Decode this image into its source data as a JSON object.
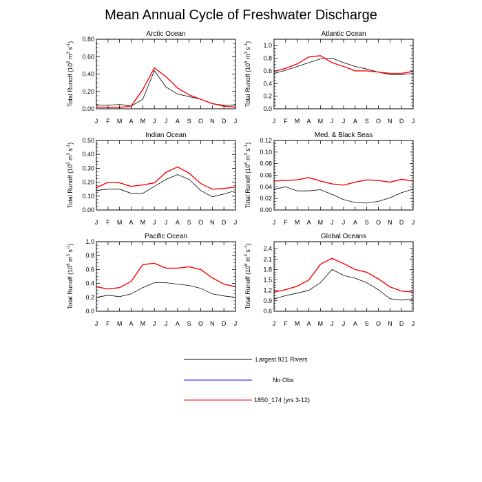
{
  "title": "Mean Annual Cycle of Freshwater Discharge",
  "months": [
    "J",
    "F",
    "M",
    "A",
    "M",
    "J",
    "J",
    "A",
    "S",
    "O",
    "N",
    "D",
    "J"
  ],
  "legend": [
    {
      "label": "Largest 921 Rivers",
      "color": "#000000"
    },
    {
      "label": "No Obs",
      "color": "#0000ff"
    },
    {
      "label": "1850_174 (yrs 3-12)",
      "color": "#ff0000"
    }
  ],
  "chart_data": [
    {
      "type": "line",
      "title": "Arctic Ocean",
      "ylabel": "Total Runoff (10^6 m^3 s^-1)",
      "ylim": [
        0,
        0.8
      ],
      "yticks": [
        0,
        0.2,
        0.4,
        0.6,
        0.8
      ],
      "ytick_labels": [
        "0.00",
        "0.20",
        "0.40",
        "0.60",
        "0.80"
      ],
      "x": [
        1,
        2,
        3,
        4,
        5,
        6,
        7,
        8,
        9,
        10,
        11,
        12,
        13
      ],
      "series": [
        {
          "name": "Largest 921 Rivers",
          "color": "#000000",
          "values": [
            0.04,
            0.04,
            0.05,
            0.03,
            0.11,
            0.44,
            0.25,
            0.17,
            0.14,
            0.11,
            0.06,
            0.04,
            0.04
          ]
        },
        {
          "name": "1850_174 (yrs 3-12)",
          "color": "#ff0000",
          "values": [
            0.02,
            0.015,
            0.015,
            0.03,
            0.22,
            0.47,
            0.37,
            0.24,
            0.16,
            0.11,
            0.06,
            0.03,
            0.02
          ]
        }
      ]
    },
    {
      "type": "line",
      "title": "Atlantic Ocean",
      "ylabel": "Total Runoff (10^6 m^3 s^-1)",
      "ylim": [
        0,
        1.1
      ],
      "yticks": [
        0,
        0.2,
        0.4,
        0.6,
        0.8,
        1.0
      ],
      "ytick_labels": [
        "0.0",
        "0.2",
        "0.4",
        "0.6",
        "0.8",
        "1.0"
      ],
      "x": [
        1,
        2,
        3,
        4,
        5,
        6,
        7,
        8,
        9,
        10,
        11,
        12,
        13
      ],
      "series": [
        {
          "name": "Largest 921 Rivers",
          "color": "#000000",
          "values": [
            0.56,
            0.61,
            0.67,
            0.73,
            0.79,
            0.8,
            0.73,
            0.67,
            0.63,
            0.58,
            0.54,
            0.54,
            0.56
          ]
        },
        {
          "name": "1850_174 (yrs 3-12)",
          "color": "#ff0000",
          "values": [
            0.59,
            0.64,
            0.71,
            0.82,
            0.84,
            0.73,
            0.67,
            0.6,
            0.6,
            0.58,
            0.56,
            0.56,
            0.59
          ]
        }
      ]
    },
    {
      "type": "line",
      "title": "Indian Ocean",
      "ylabel": "Total Runoff (10^6 m^3 s^-1)",
      "ylim": [
        0,
        0.5
      ],
      "yticks": [
        0,
        0.1,
        0.2,
        0.3,
        0.4,
        0.5
      ],
      "ytick_labels": [
        "0.00",
        "0.10",
        "0.20",
        "0.30",
        "0.40",
        "0.50"
      ],
      "x": [
        1,
        2,
        3,
        4,
        5,
        6,
        7,
        8,
        9,
        10,
        11,
        12,
        13
      ],
      "series": [
        {
          "name": "Largest 921 Rivers",
          "color": "#000000",
          "values": [
            0.14,
            0.15,
            0.15,
            0.12,
            0.12,
            0.17,
            0.22,
            0.255,
            0.22,
            0.14,
            0.095,
            0.115,
            0.14
          ]
        },
        {
          "name": "1850_174 (yrs 3-12)",
          "color": "#ff0000",
          "values": [
            0.16,
            0.2,
            0.195,
            0.17,
            0.18,
            0.195,
            0.27,
            0.31,
            0.265,
            0.19,
            0.15,
            0.155,
            0.165
          ]
        }
      ]
    },
    {
      "type": "line",
      "title": "Med. & Black Seas",
      "ylabel": "Total Runoff (10^6 m^3 s^-1)",
      "ylim": [
        0,
        0.12
      ],
      "yticks": [
        0,
        0.02,
        0.04,
        0.06,
        0.08,
        0.1,
        0.12
      ],
      "ytick_labels": [
        "0.00",
        "0.02",
        "0.04",
        "0.06",
        "0.08",
        "0.10",
        "0.12"
      ],
      "x": [
        1,
        2,
        3,
        4,
        5,
        6,
        7,
        8,
        9,
        10,
        11,
        12,
        13
      ],
      "series": [
        {
          "name": "Largest 921 Rivers",
          "color": "#000000",
          "values": [
            0.036,
            0.04,
            0.033,
            0.033,
            0.035,
            0.027,
            0.018,
            0.013,
            0.012,
            0.015,
            0.021,
            0.03,
            0.036
          ]
        },
        {
          "name": "1850_174 (yrs 3-12)",
          "color": "#ff0000",
          "values": [
            0.05,
            0.051,
            0.052,
            0.056,
            0.05,
            0.045,
            0.043,
            0.048,
            0.052,
            0.051,
            0.048,
            0.053,
            0.05
          ]
        }
      ]
    },
    {
      "type": "line",
      "title": "Pacific Ocean",
      "ylabel": "Total Runoff (10^6 m^3 s^-1)",
      "ylim": [
        0,
        1.0
      ],
      "yticks": [
        0,
        0.2,
        0.4,
        0.6,
        0.8,
        1.0
      ],
      "ytick_labels": [
        "0.0",
        "0.2",
        "0.4",
        "0.6",
        "0.8",
        "1.0"
      ],
      "x": [
        1,
        2,
        3,
        4,
        5,
        6,
        7,
        8,
        9,
        10,
        11,
        12,
        13
      ],
      "series": [
        {
          "name": "Largest 921 Rivers",
          "color": "#000000",
          "values": [
            0.2,
            0.23,
            0.21,
            0.25,
            0.34,
            0.41,
            0.41,
            0.39,
            0.37,
            0.33,
            0.25,
            0.22,
            0.2
          ]
        },
        {
          "name": "1850_174 (yrs 3-12)",
          "color": "#ff0000",
          "values": [
            0.35,
            0.32,
            0.34,
            0.43,
            0.67,
            0.69,
            0.62,
            0.62,
            0.64,
            0.6,
            0.48,
            0.39,
            0.35
          ]
        }
      ]
    },
    {
      "type": "line",
      "title": "Global Oceans",
      "ylabel": "Total Runoff (10^6 m^3 s^-1)",
      "ylim": [
        0.6,
        2.6
      ],
      "yticks": [
        0.6,
        0.9,
        1.2,
        1.5,
        1.8,
        2.1,
        2.4
      ],
      "ytick_labels": [
        "0.6",
        "0.9",
        "1.2",
        "1.5",
        "1.8",
        "2.1",
        "2.4"
      ],
      "x": [
        1,
        2,
        3,
        4,
        5,
        6,
        7,
        8,
        9,
        10,
        11,
        12,
        13
      ],
      "series": [
        {
          "name": "Largest 921 Rivers",
          "color": "#000000",
          "values": [
            0.95,
            1.05,
            1.12,
            1.2,
            1.42,
            1.8,
            1.63,
            1.55,
            1.42,
            1.22,
            0.96,
            0.92,
            0.95
          ]
        },
        {
          "name": "1850_174 (yrs 3-12)",
          "color": "#ff0000",
          "values": [
            1.15,
            1.22,
            1.32,
            1.5,
            1.95,
            2.12,
            1.97,
            1.8,
            1.72,
            1.53,
            1.3,
            1.18,
            1.15
          ]
        }
      ]
    }
  ]
}
